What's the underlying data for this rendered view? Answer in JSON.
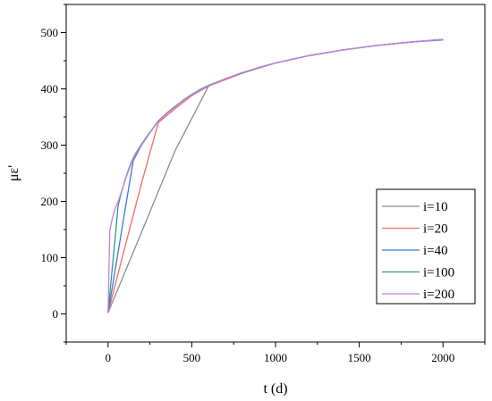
{
  "chart_data": {
    "type": "line",
    "xlabel": "t (d)",
    "ylabel": "με'",
    "xlim": [
      -250,
      2250
    ],
    "ylim": [
      -50,
      550
    ],
    "xticks": [
      0,
      500,
      1000,
      1500,
      2000
    ],
    "yticks": [
      0,
      100,
      200,
      300,
      400,
      500
    ],
    "grid": false,
    "legend_position": "bottom-right",
    "series": [
      {
        "name": "i=10",
        "color": "#8c8c8c",
        "x": [
          0,
          200,
          400,
          600,
          800,
          1000,
          1200,
          1400,
          1600,
          1800,
          2000
        ],
        "y": [
          2,
          145,
          290,
          405,
          428,
          446,
          459,
          469,
          477,
          483,
          488
        ]
      },
      {
        "name": "i=20",
        "color": "#ff6666",
        "x": [
          0,
          100,
          200,
          300,
          400,
          500,
          600,
          800,
          1000,
          1200,
          1400,
          1600,
          1800,
          2000
        ],
        "y": [
          2,
          118,
          232,
          340,
          365,
          388,
          405,
          428,
          446,
          459,
          469,
          477,
          483,
          488
        ]
      },
      {
        "name": "i=40",
        "color": "#3a7bd5",
        "x": [
          0,
          50,
          100,
          150,
          200,
          250,
          300,
          350,
          400,
          450,
          500,
          550,
          600,
          700,
          800,
          900,
          1000,
          1200,
          1400,
          1600,
          1800,
          2000
        ],
        "y": [
          2,
          92,
          182,
          272,
          300,
          322,
          343,
          356,
          368,
          380,
          390,
          398,
          406,
          418,
          428,
          438,
          446,
          459,
          469,
          477,
          483,
          488
        ]
      },
      {
        "name": "i=100",
        "color": "#2e9e7e",
        "x": [
          0,
          20,
          40,
          60,
          80,
          100,
          120,
          140,
          160,
          200,
          250,
          300,
          350,
          400,
          450,
          500,
          550,
          600,
          700,
          800,
          900,
          1000,
          1200,
          1400,
          1600,
          1800,
          2000
        ],
        "y": [
          2,
          65,
          128,
          192,
          216,
          237,
          255,
          270,
          283,
          302,
          323,
          343,
          357,
          369,
          380,
          390,
          399,
          406,
          418,
          428,
          438,
          446,
          459,
          469,
          477,
          483,
          487
        ]
      },
      {
        "name": "i=200",
        "color": "#c77fe0",
        "x": [
          0,
          10,
          20,
          30,
          40,
          50,
          60,
          80,
          100,
          120,
          140,
          160,
          200,
          250,
          300,
          350,
          400,
          450,
          500,
          550,
          600,
          700,
          800,
          900,
          1000,
          1200,
          1400,
          1600,
          1800,
          2000
        ],
        "y": [
          2,
          148,
          162,
          175,
          185,
          193,
          200,
          217,
          236,
          253,
          268,
          281,
          301,
          322,
          342,
          356,
          368,
          379,
          389,
          398,
          405,
          418,
          429,
          438,
          446,
          459,
          469,
          477,
          483,
          488
        ]
      }
    ]
  }
}
